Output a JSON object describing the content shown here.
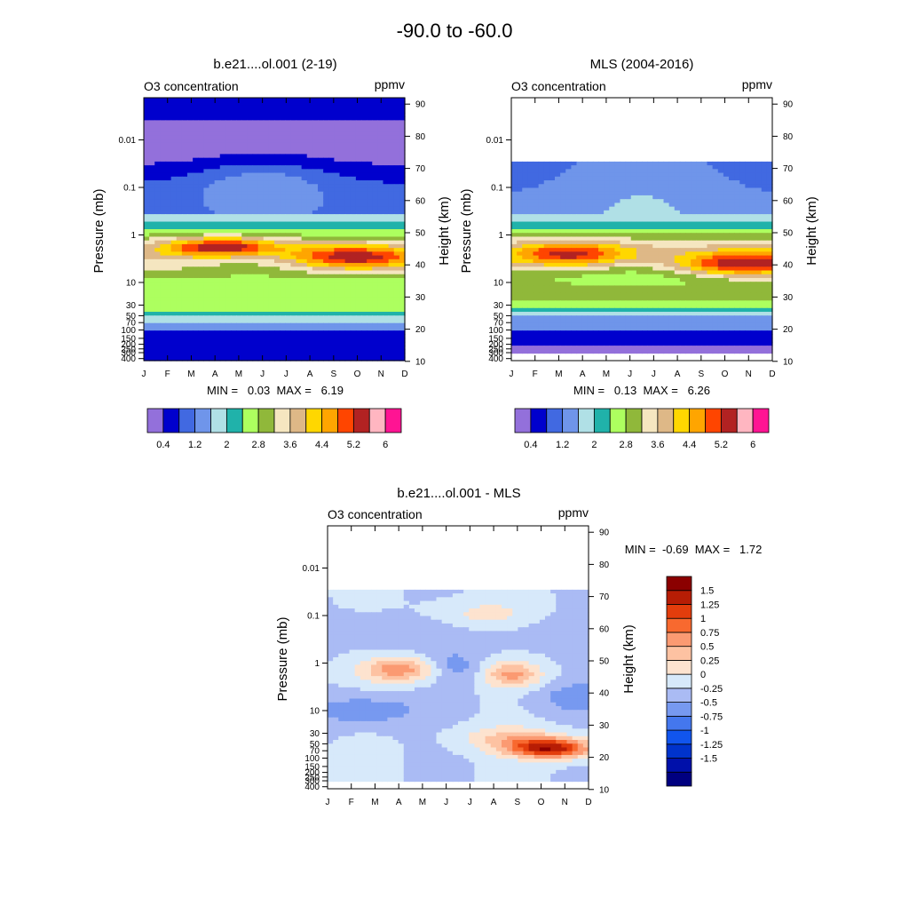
{
  "figure_title": "-90.0 to -60.0",
  "months": [
    "J",
    "F",
    "M",
    "A",
    "M",
    "J",
    "J",
    "A",
    "S",
    "O",
    "N",
    "D"
  ],
  "pressure_ticks": [
    {
      "p": 0.01,
      "label": "0.01"
    },
    {
      "p": 0.1,
      "label": "0.1"
    },
    {
      "p": 1,
      "label": "1"
    },
    {
      "p": 10,
      "label": "10"
    },
    {
      "p": 30,
      "label": "30"
    },
    {
      "p": 50,
      "label": "50"
    },
    {
      "p": 70,
      "label": "70"
    },
    {
      "p": 100,
      "label": "100"
    },
    {
      "p": 150,
      "label": "150"
    },
    {
      "p": 200,
      "label": "200"
    },
    {
      "p": 250,
      "label": "250"
    },
    {
      "p": 300,
      "label": "300"
    },
    {
      "p": 400,
      "label": "400"
    }
  ],
  "height_ticks": [
    {
      "km": 10,
      "label": "10"
    },
    {
      "km": 20,
      "label": "20"
    },
    {
      "km": 30,
      "label": "30"
    },
    {
      "km": 40,
      "label": "40"
    },
    {
      "km": 50,
      "label": "50"
    },
    {
      "km": 60,
      "label": "60"
    },
    {
      "km": 70,
      "label": "70"
    },
    {
      "km": 80,
      "label": "80"
    },
    {
      "km": 90,
      "label": "90"
    }
  ],
  "panels": [
    {
      "title": "b.e21....ol.001 (2-19)",
      "left_label": "O3 concentration",
      "right_label": "ppmv",
      "ylabel_left": "Pressure (mb)",
      "ylabel_right": "Height (km)",
      "stats": "MIN =   0.03  MAX =   6.19"
    },
    {
      "title": "MLS (2004-2016)",
      "left_label": "O3 concentration",
      "right_label": "ppmv",
      "ylabel_left": "Pressure (mb)",
      "ylabel_right": "Height (km)",
      "stats": "MIN =   0.13  MAX =   6.26"
    },
    {
      "title": "b.e21....ol.001 - MLS",
      "left_label": "O3 concentration",
      "right_label": "ppmv",
      "ylabel_left": "Pressure (mb)",
      "ylabel_right": "Height (km)",
      "stats": "MIN =  -0.69  MAX =   1.72"
    }
  ],
  "colorbar_ozone": {
    "colors": [
      "#9370DB",
      "#0000CD",
      "#4169E1",
      "#6F95EA",
      "#B0E0E6",
      "#20B2AA",
      "#ADFF5F",
      "#90B83A",
      "#F5E6C0",
      "#DEB887",
      "#FFD700",
      "#FFA500",
      "#FF4500",
      "#B22222",
      "#FFB6C1",
      "#FF1493"
    ],
    "labels": [
      "0.4",
      "1.2",
      "2",
      "2.8",
      "3.6",
      "4.4",
      "5.2",
      "6"
    ]
  },
  "colorbar_diff": {
    "colors": [
      "#000080",
      "#0010AA",
      "#0033CC",
      "#1155EE",
      "#4477EE",
      "#7799F0",
      "#AABBF4",
      "#D7E9FA",
      "#FDE3CF",
      "#FDC2A2",
      "#FB9A72",
      "#F8692F",
      "#E33D0C",
      "#B71D05",
      "#8B0000"
    ],
    "labels": [
      "1.5",
      "1.25",
      "1",
      "0.75",
      "0.5",
      "0.25",
      "0",
      "-0.25",
      "-0.5",
      "-0.75",
      "-1",
      "-1.25",
      "-1.5"
    ]
  },
  "chart_data": [
    {
      "type": "heatmap",
      "title": "b.e21....ol.001 (2-19)",
      "subtitle_left": "O3 concentration",
      "subtitle_right": "ppmv",
      "x": [
        "J",
        "F",
        "M",
        "A",
        "M",
        "J",
        "J",
        "A",
        "S",
        "O",
        "N",
        "D"
      ],
      "xlabel": "",
      "ylabel": "Pressure (mb)",
      "ylabel_right": "Height (km)",
      "yscale": "log",
      "ylim": [
        400,
        0.0025
      ],
      "min": 0.03,
      "max": 6.19,
      "levels": [
        0.4,
        0.8,
        1.2,
        1.6,
        2,
        2.4,
        2.8,
        3.2,
        3.6,
        4,
        4.4,
        4.8,
        5.2,
        5.6,
        6
      ],
      "features": [
        {
          "field": "maximum",
          "month": "A",
          "pressure_mb": 2.5,
          "value": 6.19
        },
        {
          "field": "maximum",
          "month": "S",
          "pressure_mb": 4.5,
          "value": 5.9
        }
      ]
    },
    {
      "type": "heatmap",
      "title": "MLS (2004-2016)",
      "subtitle_left": "O3 concentration",
      "subtitle_right": "ppmv",
      "x": [
        "J",
        "F",
        "M",
        "A",
        "M",
        "J",
        "J",
        "A",
        "S",
        "O",
        "N",
        "D"
      ],
      "ylabel": "Pressure (mb)",
      "ylabel_right": "Height (km)",
      "yscale": "log",
      "ylim": [
        400,
        0.0025
      ],
      "data_range_mb": [
        261,
        0.046
      ],
      "min": 0.13,
      "max": 6.26,
      "levels": [
        0.4,
        0.8,
        1.2,
        1.6,
        2,
        2.4,
        2.8,
        3.2,
        3.6,
        4,
        4.4,
        4.8,
        5.2,
        5.6,
        6
      ],
      "features": [
        {
          "field": "maximum",
          "month": "O",
          "pressure_mb": 5,
          "value": 6.26
        }
      ]
    },
    {
      "type": "heatmap",
      "title": "b.e21....ol.001 - MLS",
      "subtitle_left": "O3 concentration",
      "subtitle_right": "ppmv",
      "x": [
        "J",
        "F",
        "M",
        "A",
        "M",
        "J",
        "J",
        "A",
        "S",
        "O",
        "N",
        "D"
      ],
      "ylabel": "Pressure (mb)",
      "ylabel_right": "Height (km)",
      "yscale": "log",
      "ylim": [
        400,
        0.0025
      ],
      "min": -0.69,
      "max": 1.72,
      "levels": [
        -1.5,
        -1.25,
        -1,
        -0.75,
        -0.5,
        -0.25,
        0,
        0.25,
        0.5,
        0.75,
        1,
        1.25,
        1.5
      ],
      "features": [
        {
          "field": "maximum",
          "month": "O",
          "pressure_mb": 65,
          "value": 1.72
        },
        {
          "field": "maximum",
          "month": "A",
          "pressure_mb": 1.8,
          "value": 0.9
        },
        {
          "field": "maximum",
          "month": "S",
          "pressure_mb": 2.3,
          "value": 0.8
        }
      ]
    }
  ]
}
